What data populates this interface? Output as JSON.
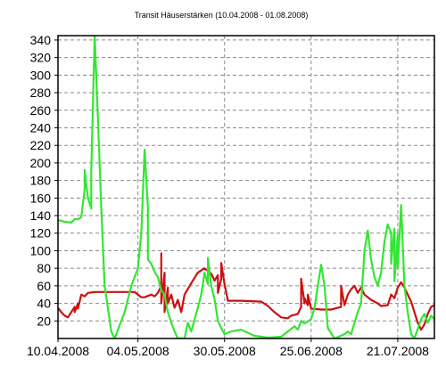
{
  "chart_data": {
    "type": "line",
    "title": "Transit Häuserstärken (10.04.2008 - 01.08.2008)",
    "xlabel": "",
    "ylabel": "",
    "x_range": [
      "10.04.2008",
      "01.08.2008"
    ],
    "x_ticks": [
      "10.04.2008",
      "04.05.2008",
      "30.05.2008",
      "25.06.2008",
      "21.07.2008"
    ],
    "ylim": [
      0,
      345
    ],
    "y_ticks": [
      20,
      40,
      60,
      80,
      100,
      120,
      140,
      160,
      180,
      200,
      220,
      240,
      260,
      280,
      300,
      320,
      340
    ],
    "grid": true,
    "legend": "none",
    "series": [
      {
        "color": "#cc1111",
        "points": [
          [
            "10.04.2008",
            35
          ],
          [
            "11.04.2008",
            30
          ],
          [
            "12.04.2008",
            26
          ],
          [
            "13.04.2008",
            24
          ],
          [
            "14.04.2008",
            30
          ],
          [
            "15.04.2008",
            36
          ],
          [
            "15.04.2008",
            30
          ],
          [
            "16.04.2008",
            40
          ],
          [
            "16.04.2008",
            34
          ],
          [
            "17.04.2008",
            50
          ],
          [
            "18.04.2008",
            48
          ],
          [
            "19.04.2008",
            52
          ],
          [
            "21.04.2008",
            53
          ],
          [
            "25.04.2008",
            53
          ],
          [
            "30.04.2008",
            53
          ],
          [
            "03.05.2008",
            53
          ],
          [
            "05.05.2008",
            47
          ],
          [
            "06.05.2008",
            47
          ],
          [
            "08.05.2008",
            50
          ],
          [
            "09.05.2008",
            48
          ],
          [
            "10.05.2008",
            52
          ],
          [
            "11.05.2008",
            60
          ],
          [
            "11.05.2008",
            97
          ],
          [
            "11.05.2008",
            40
          ],
          [
            "12.05.2008",
            75
          ],
          [
            "12.05.2008",
            30
          ],
          [
            "13.05.2008",
            58
          ],
          [
            "13.05.2008",
            40
          ],
          [
            "14.05.2008",
            50
          ],
          [
            "15.05.2008",
            35
          ],
          [
            "16.05.2008",
            44
          ],
          [
            "17.05.2008",
            30
          ],
          [
            "18.05.2008",
            50
          ],
          [
            "20.05.2008",
            63
          ],
          [
            "22.05.2008",
            75
          ],
          [
            "24.05.2008",
            80
          ],
          [
            "26.05.2008",
            74
          ],
          [
            "27.05.2008",
            66
          ],
          [
            "28.05.2008",
            72
          ],
          [
            "28.05.2008",
            52
          ],
          [
            "29.05.2008",
            68
          ],
          [
            "29.05.2008",
            86
          ],
          [
            "30.05.2008",
            62
          ],
          [
            "31.05.2008",
            43
          ],
          [
            "04.06.2008",
            43
          ],
          [
            "10.06.2008",
            42
          ],
          [
            "12.06.2008",
            37
          ],
          [
            "14.06.2008",
            30
          ],
          [
            "16.06.2008",
            24
          ],
          [
            "18.06.2008",
            23
          ],
          [
            "19.06.2008",
            26
          ],
          [
            "21.06.2008",
            28
          ],
          [
            "22.06.2008",
            36
          ],
          [
            "22.06.2008",
            68
          ],
          [
            "23.06.2008",
            40
          ],
          [
            "23.06.2008",
            46
          ],
          [
            "24.06.2008",
            38
          ],
          [
            "24.06.2008",
            50
          ],
          [
            "25.06.2008",
            34
          ],
          [
            "28.06.2008",
            33
          ],
          [
            "01.07.2008",
            33
          ],
          [
            "04.07.2008",
            36
          ],
          [
            "04.07.2008",
            60
          ],
          [
            "05.07.2008",
            38
          ],
          [
            "06.07.2008",
            50
          ],
          [
            "07.07.2008",
            56
          ],
          [
            "08.07.2008",
            60
          ],
          [
            "09.07.2008",
            52
          ],
          [
            "10.07.2008",
            58
          ],
          [
            "11.07.2008",
            50
          ],
          [
            "13.07.2008",
            44
          ],
          [
            "15.07.2008",
            40
          ],
          [
            "16.07.2008",
            37
          ],
          [
            "18.07.2008",
            38
          ],
          [
            "19.07.2008",
            50
          ],
          [
            "20.07.2008",
            46
          ],
          [
            "21.07.2008",
            58
          ],
          [
            "22.07.2008",
            64
          ],
          [
            "23.07.2008",
            58
          ],
          [
            "24.07.2008",
            50
          ],
          [
            "25.07.2008",
            42
          ],
          [
            "26.07.2008",
            30
          ],
          [
            "27.07.2008",
            18
          ],
          [
            "28.07.2008",
            10
          ],
          [
            "29.07.2008",
            16
          ],
          [
            "30.07.2008",
            28
          ],
          [
            "31.07.2008",
            36
          ],
          [
            "01.08.2008",
            38
          ]
        ]
      },
      {
        "color": "#33e633",
        "points": [
          [
            "10.04.2008",
            135
          ],
          [
            "12.04.2008",
            133
          ],
          [
            "14.04.2008",
            132
          ],
          [
            "15.04.2008",
            136
          ],
          [
            "16.04.2008",
            136
          ],
          [
            "17.04.2008",
            138
          ],
          [
            "18.04.2008",
            170
          ],
          [
            "18.04.2008",
            192
          ],
          [
            "19.04.2008",
            160
          ],
          [
            "20.04.2008",
            148
          ],
          [
            "20.04.2008",
            190
          ],
          [
            "21.04.2008",
            345
          ],
          [
            "22.04.2008",
            250
          ],
          [
            "23.04.2008",
            150
          ],
          [
            "24.04.2008",
            60
          ],
          [
            "26.04.2008",
            8
          ],
          [
            "27.04.2008",
            0
          ],
          [
            "30.04.2008",
            30
          ],
          [
            "02.05.2008",
            60
          ],
          [
            "04.05.2008",
            80
          ],
          [
            "05.05.2008",
            120
          ],
          [
            "06.05.2008",
            215
          ],
          [
            "07.05.2008",
            150
          ],
          [
            "07.05.2008",
            90
          ],
          [
            "08.05.2008",
            85
          ],
          [
            "09.05.2008",
            76
          ],
          [
            "10.05.2008",
            70
          ],
          [
            "11.05.2008",
            55
          ],
          [
            "12.05.2008",
            50
          ],
          [
            "13.05.2008",
            30
          ],
          [
            "14.05.2008",
            18
          ],
          [
            "15.05.2008",
            8
          ],
          [
            "16.05.2008",
            0
          ],
          [
            "18.05.2008",
            0
          ],
          [
            "19.05.2008",
            18
          ],
          [
            "20.05.2008",
            8
          ],
          [
            "22.05.2008",
            35
          ],
          [
            "23.05.2008",
            50
          ],
          [
            "24.05.2008",
            75
          ],
          [
            "25.05.2008",
            62
          ],
          [
            "25.05.2008",
            92
          ],
          [
            "26.05.2008",
            60
          ],
          [
            "27.05.2008",
            45
          ],
          [
            "28.05.2008",
            20
          ],
          [
            "29.05.2008",
            12
          ],
          [
            "30.05.2008",
            5
          ],
          [
            "01.06.2008",
            8
          ],
          [
            "04.06.2008",
            10
          ],
          [
            "08.06.2008",
            3
          ],
          [
            "12.06.2008",
            1
          ],
          [
            "16.06.2008",
            2
          ],
          [
            "18.06.2008",
            8
          ],
          [
            "20.06.2008",
            14
          ],
          [
            "21.06.2008",
            10
          ],
          [
            "22.06.2008",
            20
          ],
          [
            "23.06.2008",
            17
          ],
          [
            "25.06.2008",
            22
          ],
          [
            "26.06.2008",
            35
          ],
          [
            "27.06.2008",
            60
          ],
          [
            "28.06.2008",
            84
          ],
          [
            "29.06.2008",
            60
          ],
          [
            "30.06.2008",
            12
          ],
          [
            "02.07.2008",
            0
          ],
          [
            "05.07.2008",
            5
          ],
          [
            "06.07.2008",
            8
          ],
          [
            "07.07.2008",
            5
          ],
          [
            "08.07.2008",
            18
          ],
          [
            "09.07.2008",
            30
          ],
          [
            "10.07.2008",
            40
          ],
          [
            "11.07.2008",
            100
          ],
          [
            "12.07.2008",
            123
          ],
          [
            "13.07.2008",
            90
          ],
          [
            "14.07.2008",
            70
          ],
          [
            "15.07.2008",
            60
          ],
          [
            "16.07.2008",
            75
          ],
          [
            "17.07.2008",
            110
          ],
          [
            "18.07.2008",
            130
          ],
          [
            "19.07.2008",
            120
          ],
          [
            "19.07.2008",
            85
          ],
          [
            "20.07.2008",
            125
          ],
          [
            "20.07.2008",
            65
          ],
          [
            "21.07.2008",
            118
          ],
          [
            "21.07.2008",
            80
          ],
          [
            "22.07.2008",
            152
          ],
          [
            "23.07.2008",
            60
          ],
          [
            "24.07.2008",
            30
          ],
          [
            "25.07.2008",
            5
          ],
          [
            "26.07.2008",
            0
          ],
          [
            "28.07.2008",
            22
          ],
          [
            "29.07.2008",
            28
          ],
          [
            "30.07.2008",
            18
          ],
          [
            "31.07.2008",
            26
          ],
          [
            "01.08.2008",
            22
          ]
        ]
      }
    ]
  }
}
